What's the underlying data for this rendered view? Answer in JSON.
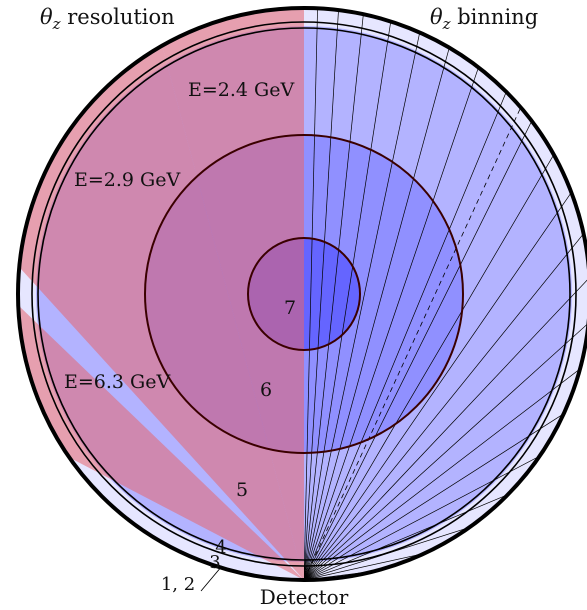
{
  "title_left": "θ_z resolution",
  "title_left_parts": {
    "symbol": "θ",
    "sub": "z",
    "rest": " resolution"
  },
  "title_right_parts": {
    "symbol": "θ",
    "sub": "z",
    "rest": " binning"
  },
  "bottom_label": "Detector",
  "energy_labels": [
    "E=2.4 GeV",
    "E=2.9 GeV",
    "E=6.3 GeV"
  ],
  "region_labels": [
    "7",
    "6",
    "5",
    "4",
    "3",
    "1, 2"
  ],
  "colors": {
    "outer_ring": "#e6e6ff",
    "blue_light": "#b3b3ff",
    "blue_mid": "#9090ff",
    "blue_deep": "#6565ff",
    "pink_sector": "#f4a6b8",
    "red_overlay": "#e6646e",
    "stroke": "#000000",
    "inner_stroke": "#3a0000"
  }
}
